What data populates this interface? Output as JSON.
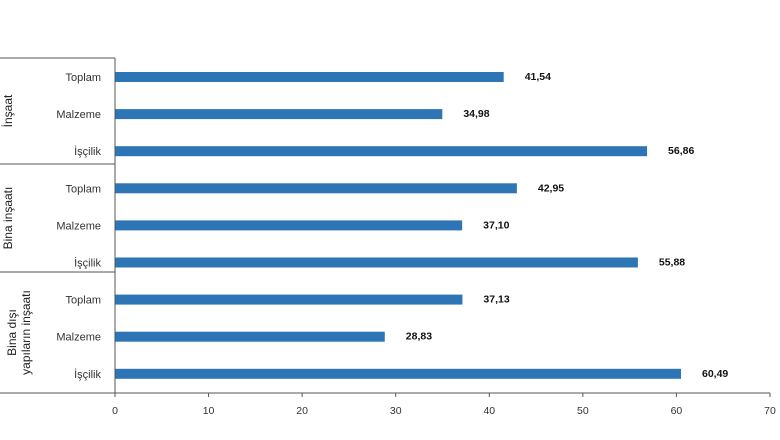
{
  "chart_data": {
    "type": "bar",
    "orientation": "horizontal",
    "title": "",
    "xlabel": "",
    "ylabel": "",
    "xlim": [
      0,
      70
    ],
    "xticks": [
      "0",
      "10",
      "20",
      "30",
      "40",
      "50",
      "60",
      "70"
    ],
    "grid": false,
    "legend": "none",
    "bar_color": "#2e75b6",
    "groups": [
      {
        "name": "İnşaat",
        "items": [
          {
            "label": "Toplam",
            "value": 41.54,
            "value_label": "41,54"
          },
          {
            "label": "Malzeme",
            "value": 34.98,
            "value_label": "34,98"
          },
          {
            "label": "İşçilik",
            "value": 56.86,
            "value_label": "56,86"
          }
        ]
      },
      {
        "name": "Bina inşaatı",
        "items": [
          {
            "label": "Toplam",
            "value": 42.95,
            "value_label": "42,95"
          },
          {
            "label": "Malzeme",
            "value": 37.1,
            "value_label": "37,10"
          },
          {
            "label": "İşçilik",
            "value": 55.88,
            "value_label": "55,88"
          }
        ]
      },
      {
        "name_lines": [
          "Bina dışı",
          "yapıların inşaatı"
        ],
        "items": [
          {
            "label": "Toplam",
            "value": 37.13,
            "value_label": "37,13"
          },
          {
            "label": "Malzeme",
            "value": 28.83,
            "value_label": "28,83"
          },
          {
            "label": "İşçilik",
            "value": 60.49,
            "value_label": "60,49"
          }
        ]
      }
    ]
  }
}
